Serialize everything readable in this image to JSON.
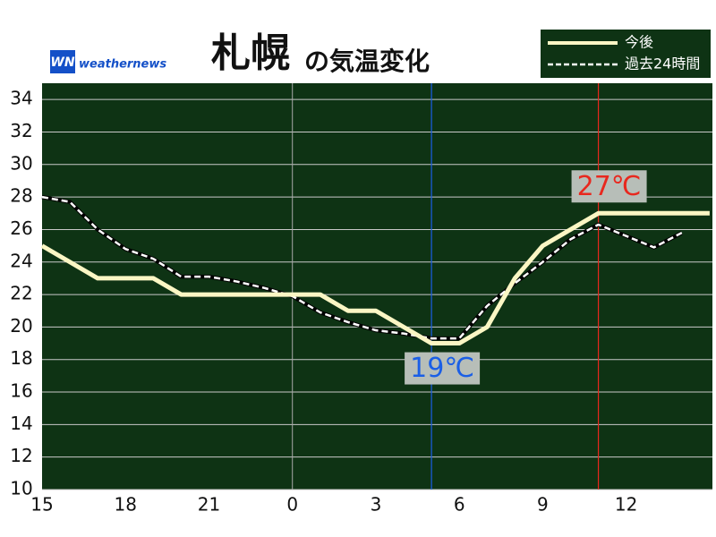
{
  "chart_data": {
    "type": "line",
    "title": "札幌",
    "subtitle": "の気温変化",
    "brand": "weathernews",
    "brand_mark": "WN",
    "x": [
      0,
      1,
      2,
      3,
      4,
      5,
      6,
      7,
      8,
      9,
      10,
      11,
      12,
      13,
      14,
      15,
      16,
      17,
      18,
      19,
      20,
      21,
      22,
      23,
      24
    ],
    "series": [
      {
        "name": "今後",
        "color": "#fbf6c4",
        "style": "solid",
        "values": [
          25,
          24,
          23,
          23,
          23,
          22,
          22,
          22,
          22,
          22,
          22,
          21,
          21,
          20,
          19,
          19,
          20,
          23,
          25,
          26,
          27,
          27,
          27,
          27,
          27
        ]
      },
      {
        "name": "過去24時間",
        "color": "#ffffff",
        "style": "dashed",
        "values": [
          28,
          27.7,
          26,
          24.8,
          24.2,
          23.1,
          23.1,
          22.8,
          22.4,
          21.9,
          20.9,
          20.3,
          19.8,
          19.6,
          19.3,
          19.3,
          21.3,
          22.7,
          24,
          25.4,
          26.3,
          25.6,
          24.9,
          25.8,
          null
        ]
      }
    ],
    "xlim": [
      0,
      24.1
    ],
    "xticks": [
      {
        "value": 0,
        "label": "15"
      },
      {
        "value": 3,
        "label": "18"
      },
      {
        "value": 6,
        "label": "21"
      },
      {
        "value": 9,
        "label": "0"
      },
      {
        "value": 12,
        "label": "3"
      },
      {
        "value": 15,
        "label": "6"
      },
      {
        "value": 18,
        "label": "9"
      },
      {
        "value": 21,
        "label": "12"
      }
    ],
    "ylim": [
      10,
      35
    ],
    "yticks": [
      10,
      12,
      14,
      16,
      18,
      20,
      22,
      24,
      26,
      28,
      30,
      32,
      34
    ],
    "grid": true,
    "day_line": 9,
    "annotations": [
      {
        "text": "19℃",
        "x": 14,
        "y": 19,
        "color": "#1a5fe6"
      },
      {
        "text": "27℃",
        "x": 20,
        "y": 27,
        "color": "#e8281e"
      }
    ],
    "legend": "top-right"
  }
}
